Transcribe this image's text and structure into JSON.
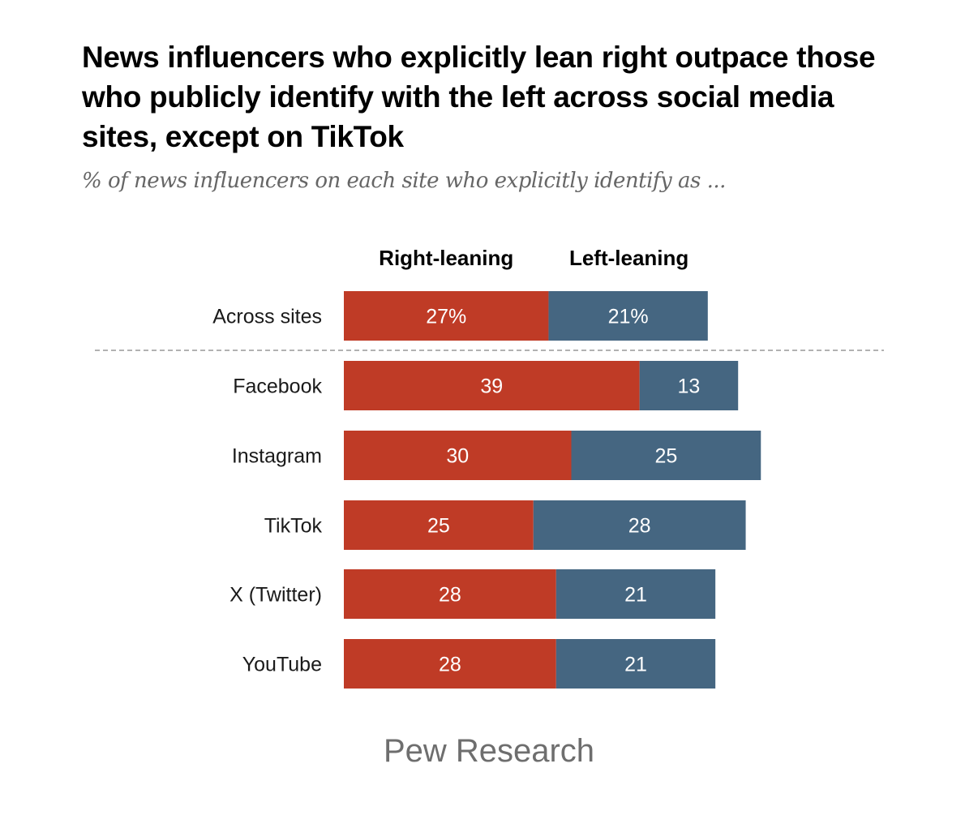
{
  "colors": {
    "right": "#bf3b26",
    "left": "#456681",
    "divider": "#999999"
  },
  "chart_data": {
    "type": "bar",
    "orientation": "horizontal",
    "stacked": true,
    "title": "News influencers who explicitly lean right outpace those who publicly identify with the left across social media sites, except on TikTok",
    "subtitle": "% of news influencers on each site who explicitly identify as ...",
    "categories": [
      "Across sites",
      "Facebook",
      "Instagram",
      "TikTok",
      "X (Twitter)",
      "YouTube"
    ],
    "series": [
      {
        "name": "Right-leaning",
        "values": [
          27,
          39,
          30,
          25,
          28,
          28
        ],
        "labels": [
          "27%",
          "39",
          "30",
          "25",
          "28",
          "28"
        ]
      },
      {
        "name": "Left-leaning",
        "values": [
          21,
          13,
          25,
          28,
          21,
          21
        ],
        "labels": [
          "21%",
          "13",
          "25",
          "28",
          "21",
          "21"
        ]
      }
    ],
    "legend": "top",
    "grid": false,
    "xlim": [
      0,
      60
    ],
    "divider_after": "Across sites",
    "source": "Pew Research"
  }
}
